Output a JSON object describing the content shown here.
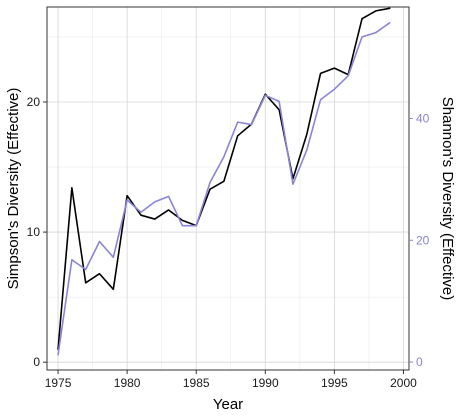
{
  "chart_data": {
    "type": "line",
    "title": "",
    "xlabel": "Year",
    "ylabel": "Simpson's Diversity (Effective)",
    "y2label": "Shannon's Diversity (Effective)",
    "xlim": [
      1974.2,
      2000.4
    ],
    "ylim": [
      -0.6,
      27.3
    ],
    "y2lim": [
      -1.3,
      58.3
    ],
    "x_ticks": [
      1975,
      1980,
      1985,
      1990,
      1995,
      2000
    ],
    "y_ticks": [
      0,
      10,
      20
    ],
    "y2_ticks": [
      0,
      20,
      40
    ],
    "grid": true,
    "legend": "none",
    "colors": {
      "simpson": "#000000",
      "shannon": "#8a84d6",
      "panel_border": "#333333"
    },
    "x": [
      1975,
      1976,
      1977,
      1978,
      1979,
      1980,
      1981,
      1982,
      1983,
      1984,
      1985,
      1986,
      1987,
      1988,
      1989,
      1990,
      1991,
      1992,
      1993,
      1994,
      1995,
      1996,
      1997,
      1998,
      1999
    ],
    "series": [
      {
        "axis": "left",
        "color": "#000000",
        "values": [
          1.0,
          13.4,
          6.1,
          6.8,
          5.6,
          12.8,
          11.3,
          11.0,
          11.7,
          10.9,
          10.5,
          13.3,
          13.9,
          17.4,
          18.3,
          20.6,
          19.4,
          14.1,
          17.5,
          22.2,
          22.6,
          22.1,
          26.4,
          27.0,
          27.2
        ]
      },
      {
        "axis": "right",
        "color": "#8a84d6",
        "values": [
          1.2,
          16.8,
          15.2,
          19.8,
          17.2,
          26.6,
          24.6,
          26.3,
          27.2,
          22.4,
          22.4,
          29.5,
          33.7,
          39.4,
          39.0,
          43.8,
          42.8,
          29.2,
          34.8,
          43.1,
          44.8,
          47.0,
          53.4,
          54.1,
          55.7
        ]
      }
    ]
  }
}
